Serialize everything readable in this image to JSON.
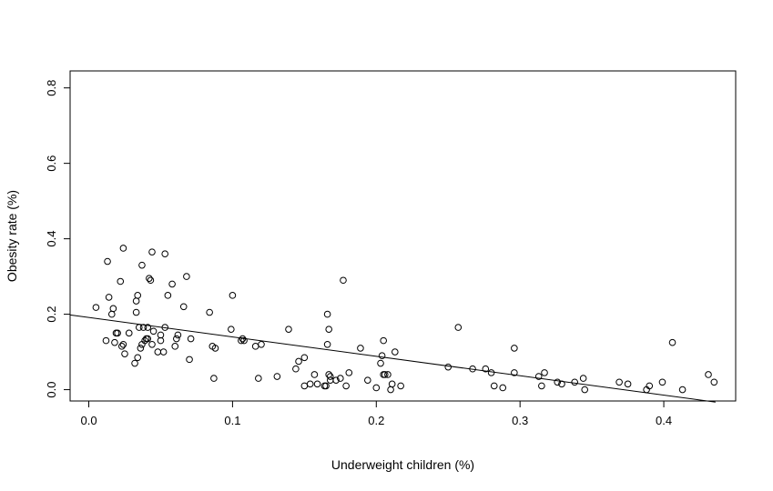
{
  "chart_data": {
    "type": "scatter",
    "title": "",
    "xlabel": "Underweight children (%)",
    "ylabel": "Obesity rate (%)",
    "xlim": [
      -0.013,
      0.45
    ],
    "ylim": [
      -0.03,
      0.845
    ],
    "xticks": [
      0.0,
      0.1,
      0.2,
      0.3,
      0.4
    ],
    "xtick_labels": [
      "0.0",
      "0.1",
      "0.2",
      "0.3",
      "0.4"
    ],
    "yticks": [
      0.0,
      0.2,
      0.4,
      0.6,
      0.8
    ],
    "ytick_labels": [
      "0.0",
      "0.2",
      "0.4",
      "0.6",
      "0.8"
    ],
    "grid": false,
    "legend": "none",
    "point_style": "open-circle",
    "point_color": "#000000",
    "trend_line": {
      "x": [
        -0.013,
        0.436
      ],
      "y": [
        0.198,
        -0.033
      ]
    },
    "series": [
      {
        "x": [
          0.005,
          0.012,
          0.013,
          0.014,
          0.016,
          0.017,
          0.018,
          0.019,
          0.02,
          0.022,
          0.023,
          0.024,
          0.024,
          0.025,
          0.028,
          0.032,
          0.033,
          0.033,
          0.034,
          0.034,
          0.035,
          0.036,
          0.037,
          0.037,
          0.038,
          0.039,
          0.04,
          0.041,
          0.041,
          0.042,
          0.043,
          0.044,
          0.044,
          0.045,
          0.048,
          0.05,
          0.05,
          0.052,
          0.053,
          0.053,
          0.055,
          0.058,
          0.06,
          0.061,
          0.062,
          0.066,
          0.068,
          0.07,
          0.071,
          0.084,
          0.086,
          0.087,
          0.088,
          0.099,
          0.1,
          0.106,
          0.107,
          0.108,
          0.116,
          0.118,
          0.12,
          0.131,
          0.139,
          0.144,
          0.146,
          0.15,
          0.15,
          0.154,
          0.157,
          0.159,
          0.164,
          0.165,
          0.166,
          0.166,
          0.167,
          0.167,
          0.168,
          0.168,
          0.172,
          0.175,
          0.177,
          0.179,
          0.181,
          0.189,
          0.194,
          0.2,
          0.203,
          0.204,
          0.205,
          0.205,
          0.206,
          0.208,
          0.21,
          0.211,
          0.213,
          0.217,
          0.25,
          0.257,
          0.267,
          0.276,
          0.28,
          0.282,
          0.288,
          0.296,
          0.296,
          0.313,
          0.315,
          0.317,
          0.326,
          0.329,
          0.338,
          0.344,
          0.345,
          0.369,
          0.375,
          0.388,
          0.39,
          0.399,
          0.406,
          0.413,
          0.431,
          0.435
        ],
        "y": [
          0.218,
          0.13,
          0.34,
          0.245,
          0.2,
          0.215,
          0.125,
          0.15,
          0.15,
          0.287,
          0.115,
          0.375,
          0.12,
          0.095,
          0.15,
          0.07,
          0.205,
          0.235,
          0.25,
          0.085,
          0.165,
          0.11,
          0.33,
          0.12,
          0.165,
          0.13,
          0.135,
          0.165,
          0.135,
          0.295,
          0.29,
          0.365,
          0.12,
          0.155,
          0.1,
          0.145,
          0.13,
          0.1,
          0.36,
          0.165,
          0.25,
          0.28,
          0.115,
          0.135,
          0.145,
          0.22,
          0.3,
          0.08,
          0.135,
          0.205,
          0.115,
          0.03,
          0.11,
          0.16,
          0.25,
          0.13,
          0.135,
          0.13,
          0.115,
          0.03,
          0.12,
          0.035,
          0.16,
          0.055,
          0.075,
          0.01,
          0.085,
          0.015,
          0.04,
          0.015,
          0.01,
          0.01,
          0.2,
          0.12,
          0.16,
          0.04,
          0.025,
          0.035,
          0.025,
          0.03,
          0.29,
          0.01,
          0.045,
          0.11,
          0.025,
          0.005,
          0.07,
          0.09,
          0.04,
          0.13,
          0.04,
          0.04,
          0.0,
          0.015,
          0.1,
          0.01,
          0.06,
          0.165,
          0.055,
          0.055,
          0.045,
          0.01,
          0.005,
          0.11,
          0.045,
          0.035,
          0.01,
          0.045,
          0.02,
          0.015,
          0.02,
          0.03,
          0.0,
          0.02,
          0.015,
          0.0,
          0.01,
          0.02,
          0.125,
          0.0,
          0.04,
          0.02
        ]
      }
    ]
  }
}
